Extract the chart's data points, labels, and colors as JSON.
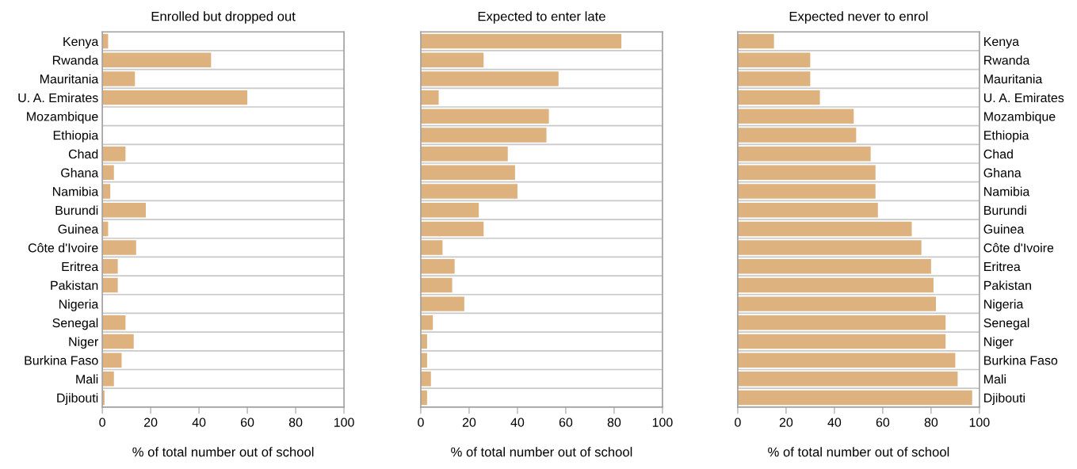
{
  "chart_data": [
    {
      "type": "bar",
      "orientation": "horizontal",
      "title": "Enrolled but dropped out",
      "xlabel": "% of total number out of school",
      "categories": [
        "Kenya",
        "Rwanda",
        "Mauritania",
        "U. A. Emirates",
        "Mozambique",
        "Ethiopia",
        "Chad",
        "Ghana",
        "Namibia",
        "Burundi",
        "Guinea",
        "Côte d'Ivoire",
        "Eritrea",
        "Pakistan",
        "Nigeria",
        "Senegal",
        "Niger",
        "Burkina Faso",
        "Mali",
        "Djibouti"
      ],
      "values": [
        2.4,
        45,
        13.5,
        60,
        null,
        null,
        9.6,
        4.8,
        3.3,
        18,
        2.4,
        14,
        6.4,
        6.4,
        null,
        9.6,
        13,
        8,
        4.8,
        0.9
      ],
      "color": "#deb27e",
      "xlim": [
        0,
        100
      ],
      "xticks": [
        0,
        20,
        40,
        60,
        80,
        100
      ],
      "grid": "y"
    },
    {
      "type": "bar",
      "orientation": "horizontal",
      "title": "Expected to enter late",
      "xlabel": "% of total number out of school",
      "categories": [
        null,
        null,
        null,
        null,
        null,
        null,
        null,
        null,
        null,
        null,
        null,
        null,
        null,
        null,
        null,
        null,
        null,
        null,
        null,
        null
      ],
      "values": [
        83,
        26,
        57,
        7.4,
        53,
        52,
        36,
        39,
        40,
        24,
        26,
        9,
        14,
        13,
        18,
        5,
        2.6,
        2.6,
        4.2,
        2.6
      ],
      "color": "#deb27e",
      "xlim": [
        0,
        100
      ],
      "xticks": [
        0,
        20,
        40,
        60,
        80,
        100
      ],
      "grid": "y",
      "tick_labels": "x"
    },
    {
      "type": "bar",
      "orientation": "horizontal",
      "title": "Expected never to enrol",
      "xlabel": "% of total number out of school",
      "categories": [
        "Kenya",
        "Rwanda",
        "Mauritania",
        "U. A. Emirates",
        "Mozambique",
        "Ethiopia",
        "Chad",
        "Ghana",
        "Namibia",
        "Burundi",
        "Guinea",
        "Côte d'Ivoire",
        "Eritrea",
        "Pakistan",
        "Nigeria",
        "Senegal",
        "Niger",
        "Burkina Faso",
        "Mali",
        "Djibouti"
      ],
      "values": [
        15,
        30,
        30,
        34,
        48,
        49,
        55,
        57,
        57,
        58,
        72,
        76,
        80,
        81,
        82,
        86,
        86,
        90,
        91,
        97
      ],
      "color": "#deb27e",
      "xlim": [
        0,
        100
      ],
      "xticks": [
        0,
        20,
        40,
        60,
        80,
        100
      ],
      "grid": "y"
    }
  ]
}
